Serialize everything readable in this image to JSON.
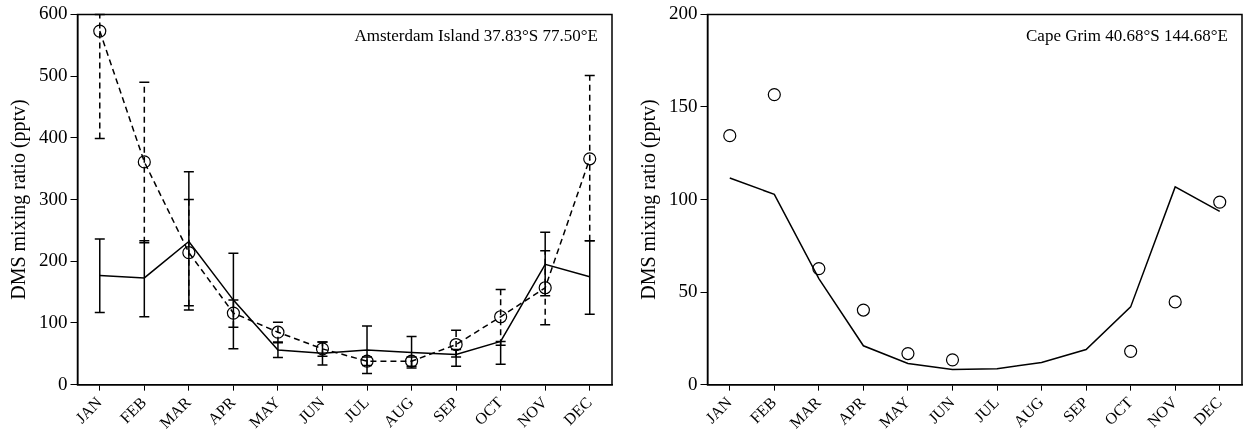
{
  "chart_data": [
    {
      "type": "line",
      "categories": [
        "JAN",
        "FEB",
        "MAR",
        "APR",
        "MAY",
        "JUN",
        "JUL",
        "AUG",
        "SEP",
        "OCT",
        "NOV",
        "DEC"
      ],
      "ylabel": "DMS mixing ratio (pptv)",
      "annotations": [
        "Amsterdam Island 37.83°S 77.50°E"
      ],
      "ylim": [
        0,
        600
      ],
      "yticks": [
        0,
        100,
        200,
        300,
        400,
        500,
        600
      ],
      "grid": false,
      "series": [
        {
          "type": "line",
          "color": "#000000",
          "line_style": "solid",
          "marker": "none",
          "values": [
            177,
            173,
            232,
            137,
            56,
            51,
            56,
            52,
            49,
            70,
            195,
            175
          ],
          "errors": [
            [
              117,
              236
            ],
            [
              110,
              233
            ],
            [
              121,
              345
            ],
            [
              58,
              213
            ],
            [
              44,
              69
            ],
            [
              32,
              69
            ],
            [
              18,
              95
            ],
            [
              27,
              78
            ],
            [
              30,
              57
            ],
            [
              33,
              70
            ],
            [
              144,
              247
            ],
            [
              114,
              233
            ]
          ]
        },
        {
          "type": "line",
          "color": "#000000",
          "line_style": "dashed",
          "marker": "circle",
          "values": [
            573,
            361,
            214,
            116,
            85,
            58,
            38,
            38,
            65,
            110,
            157,
            366
          ],
          "errors": [
            [
              399,
              600
            ],
            [
              230,
              490
            ],
            [
              128,
              300
            ],
            [
              93,
              137
            ],
            [
              68,
              101
            ],
            [
              46,
              69
            ],
            [
              31,
              45
            ],
            [
              30,
              45
            ],
            [
              45,
              88
            ],
            [
              64,
              154
            ],
            [
              97,
              217
            ],
            [
              233,
              501
            ]
          ]
        }
      ]
    },
    {
      "type": "line",
      "categories": [
        "JAN",
        "FEB",
        "MAR",
        "APR",
        "MAY",
        "JUN",
        "JUL",
        "AUG",
        "SEP",
        "OCT",
        "NOV",
        "DEC"
      ],
      "ylabel": "DMS mixing ratio (pptv)",
      "annotations": [
        "Cape Grim 40.68°S 144.68°E"
      ],
      "ylim": [
        0,
        200
      ],
      "yticks": [
        0,
        50,
        100,
        150,
        200
      ],
      "grid": false,
      "series": [
        {
          "type": "line",
          "color": "#000000",
          "line_style": "solid",
          "marker": "none",
          "values": [
            111.6,
            102.8,
            57.3,
            21,
            11.4,
            8.2,
            8.6,
            12,
            19,
            42,
            106.8,
            93.6
          ]
        },
        {
          "type": "scatter",
          "color": "#000000",
          "marker": "circle",
          "values": [
            134.5,
            156.7,
            62.7,
            40.3,
            16.8,
            13.4,
            null,
            null,
            null,
            18,
            44.7,
            98.6
          ]
        }
      ]
    }
  ]
}
